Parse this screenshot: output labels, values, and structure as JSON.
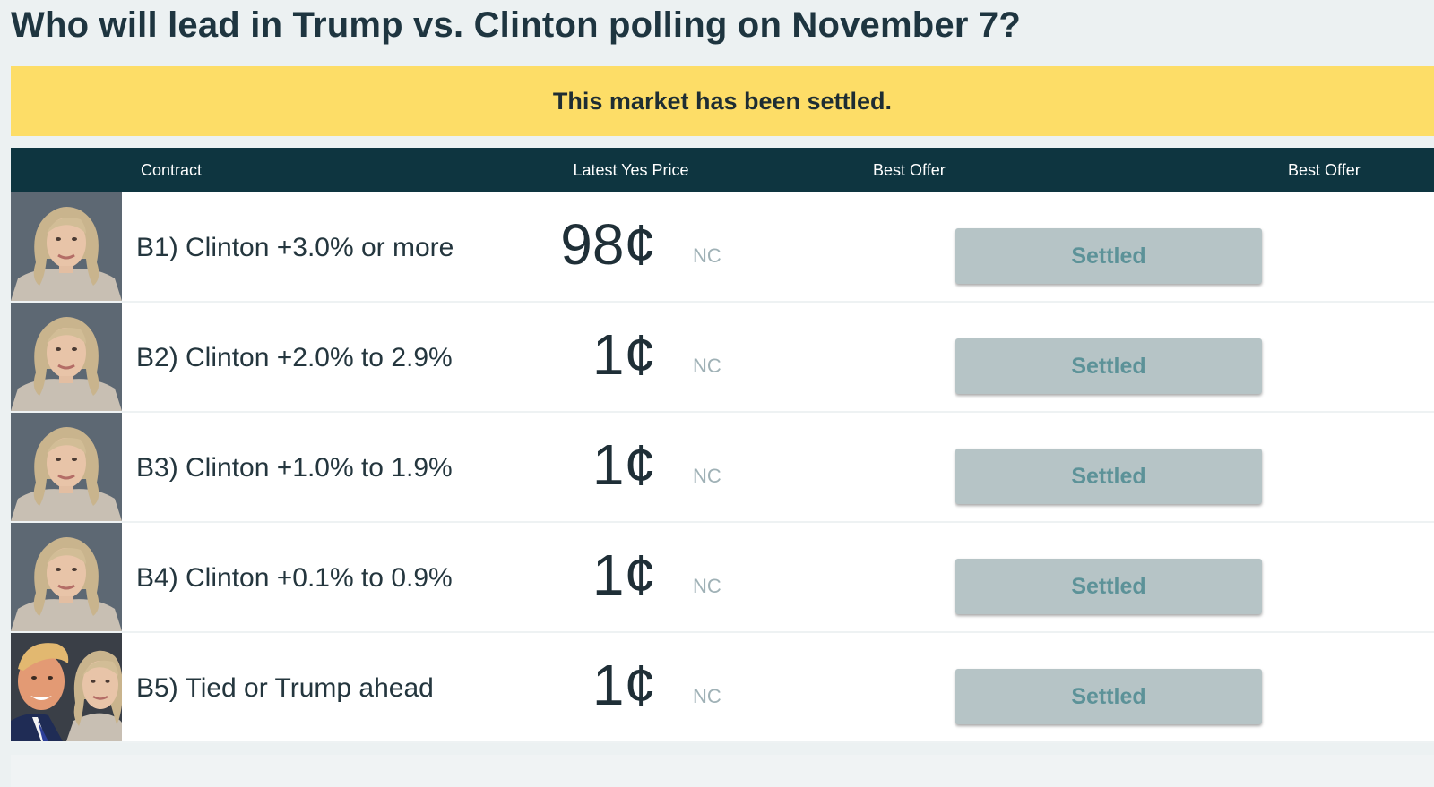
{
  "title": "Who will lead in Trump vs. Clinton polling on November 7?",
  "banner": {
    "text": "This market has been settled.",
    "color": "#fddd67"
  },
  "table": {
    "headers": {
      "contract": "Contract",
      "latest_yes_price": "Latest Yes Price",
      "best_offer_1": "Best Offer",
      "best_offer_2": "Best Offer"
    },
    "header_color": "#0e3540",
    "rows": [
      {
        "contract": "B1) Clinton +3.0% or more",
        "price": "98¢",
        "change": "NC",
        "action": "Settled",
        "avatar": "clinton-portrait"
      },
      {
        "contract": "B2) Clinton +2.0% to 2.9%",
        "price": "1¢",
        "change": "NC",
        "action": "Settled",
        "avatar": "clinton-portrait"
      },
      {
        "contract": "B3) Clinton +1.0% to 1.9%",
        "price": "1¢",
        "change": "NC",
        "action": "Settled",
        "avatar": "clinton-portrait"
      },
      {
        "contract": "B4) Clinton +0.1% to 0.9%",
        "price": "1¢",
        "change": "NC",
        "action": "Settled",
        "avatar": "clinton-portrait"
      },
      {
        "contract": "B5) Tied or Trump ahead",
        "price": "1¢",
        "change": "NC",
        "action": "Settled",
        "avatar": "trump-clinton-portrait"
      }
    ]
  }
}
